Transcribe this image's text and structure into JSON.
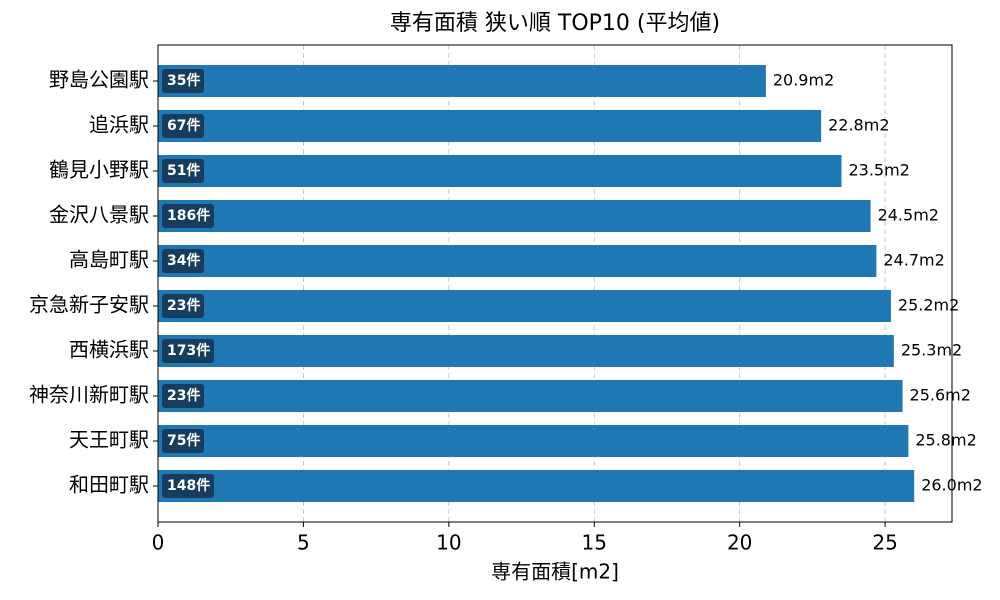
{
  "chart_data": {
    "type": "barh",
    "title": "専有面積 狭い順 TOP10 (平均値)",
    "x_label": "専有面積[m2]",
    "categories": [
      "野島公園駅",
      "追浜駅",
      "鶴見小野駅",
      "金沢八景駅",
      "高島町駅",
      "京急新子安駅",
      "西横浜駅",
      "神奈川新町駅",
      "天王町駅",
      "和田町駅"
    ],
    "values": [
      20.9,
      22.8,
      23.5,
      24.5,
      24.7,
      25.2,
      25.3,
      25.6,
      25.8,
      26.0
    ],
    "value_labels": [
      "20.9m2",
      "22.8m2",
      "23.5m2",
      "24.5m2",
      "24.7m2",
      "25.2m2",
      "25.3m2",
      "25.6m2",
      "25.8m2",
      "26.0m2"
    ],
    "count_labels": [
      "35件",
      "67件",
      "51件",
      "186件",
      "34件",
      "23件",
      "173件",
      "23件",
      "75件",
      "148件"
    ],
    "color": "#1f77b4",
    "badge_color": "#173d5e",
    "xlim": [
      0,
      27.3
    ],
    "xticks": [
      0,
      5,
      10,
      15,
      20,
      25
    ],
    "grid": true
  }
}
